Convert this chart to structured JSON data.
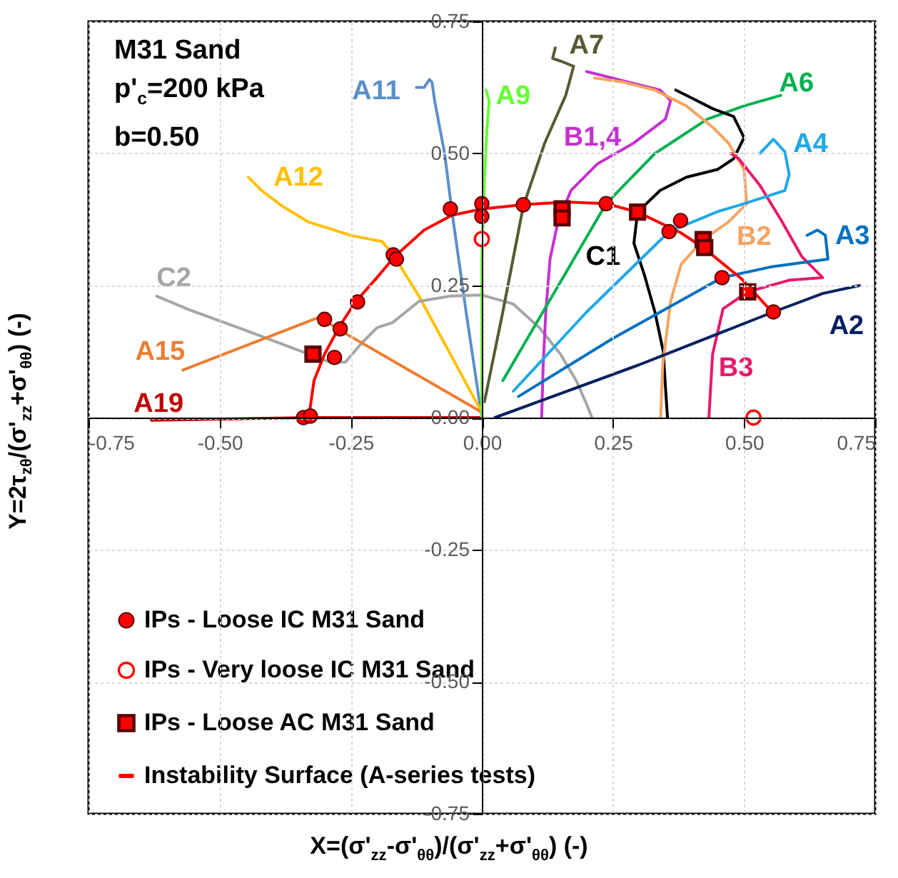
{
  "chart_data": {
    "type": "line",
    "xlabel": "X=(σ'$_{zz}$-σ'$_{θθ}$)/(σ'$_{zz}$+σ'$_{θθ}$) (-)",
    "ylabel": "Y=2τ$_{zθ}$/(σ'$_{zz}$+σ'$_{θθ}$) (-)",
    "xlim": [
      -0.75,
      0.75
    ],
    "ylim": [
      -0.75,
      0.75
    ],
    "xticks": [
      -0.75,
      {
        "value": -0.5,
        "label": "-0.50"
      },
      -0.25,
      {
        "value": 0,
        "label": "0.00"
      },
      0.25,
      {
        "value": 0.5,
        "label": "0.50"
      },
      0.75
    ],
    "yticks": [
      -0.75,
      {
        "value": -0.5,
        "label": "-0.50"
      },
      -0.25,
      {
        "value": 0,
        "label": "0.00"
      },
      0.25,
      {
        "value": 0.5,
        "label": "0.50"
      },
      0.75
    ],
    "grid": true,
    "legend": "bottom left",
    "line_style": "solid",
    "annotations": [
      "M31 Sand",
      "p'$_{c}$=200 kPa",
      "b=0.50"
    ],
    "series": [
      {
        "name": "A11",
        "color": "#5b8fc9",
        "x": [
          0,
          -0.03,
          -0.057,
          -0.071,
          -0.09,
          -0.095,
          -0.1,
          -0.11,
          -0.125
        ],
        "values": [
          0,
          0.2,
          0.39,
          0.5,
          0.6,
          0.635,
          0.64,
          0.625,
          0.625
        ]
      },
      {
        "name": "A12",
        "color": "#ffc000",
        "x": [
          0,
          -0.12,
          -0.17,
          -0.19,
          -0.25,
          -0.33,
          -0.38,
          -0.42,
          -0.445
        ],
        "values": [
          0.01,
          0.23,
          0.31,
          0.333,
          0.345,
          0.37,
          0.4,
          0.43,
          0.455
        ]
      },
      {
        "name": "C2",
        "color": "#a6a6a6",
        "x": [
          -0.62,
          -0.56,
          -0.45,
          -0.33,
          -0.29,
          -0.26,
          -0.23,
          -0.2,
          -0.17,
          -0.12,
          -0.06,
          0,
          0.06,
          0.11,
          0.15,
          0.18,
          0.2,
          0.21
        ],
        "values": [
          0.23,
          0.205,
          0.165,
          0.12,
          0.105,
          0.105,
          0.14,
          0.17,
          0.18,
          0.22,
          0.23,
          0.232,
          0.215,
          0.17,
          0.12,
          0.07,
          0.025,
          0
        ]
      },
      {
        "name": "A15",
        "color": "#ed7d31",
        "x": [
          -0.57,
          -0.31,
          -0.27,
          0
        ],
        "values": [
          0.09,
          0.19,
          0.165,
          0.01
        ]
      },
      {
        "name": "A19",
        "color": "#c00000",
        "x": [
          -0.63,
          -0.33,
          0
        ],
        "values": [
          -0.005,
          0,
          0
        ]
      },
      {
        "name": "A9",
        "color": "#66ff33",
        "x": [
          0,
          0,
          0.005,
          0.01,
          0.014,
          0.008
        ],
        "values": [
          0,
          0.3,
          0.45,
          0.55,
          0.6,
          0.62
        ]
      },
      {
        "name": "A7",
        "color": "#595933",
        "x": [
          0.005,
          0.04,
          0.079,
          0.12,
          0.16,
          0.175,
          0.15,
          0.135,
          0.14
        ],
        "values": [
          0.03,
          0.2,
          0.4,
          0.52,
          0.61,
          0.665,
          0.675,
          0.68,
          0.7
        ]
      },
      {
        "name": "B1,4",
        "color": "#c531d0",
        "x": [
          0.114,
          0.117,
          0.122,
          0.13,
          0.145,
          0.17,
          0.22,
          0.29,
          0.35,
          0.36,
          0.34,
          0.28,
          0.2
        ],
        "values": [
          0,
          0.1,
          0.2,
          0.3,
          0.37,
          0.43,
          0.48,
          0.52,
          0.565,
          0.6,
          0.62,
          0.635,
          0.655
        ]
      },
      {
        "name": "A6",
        "color": "#00b050",
        "x": [
          0.04,
          0.14,
          0.237,
          0.33,
          0.43,
          0.5,
          0.57
        ],
        "values": [
          0.07,
          0.24,
          0.405,
          0.5,
          0.565,
          0.59,
          0.61
        ]
      },
      {
        "name": "C1",
        "color": "#000000",
        "x": [
          0.354,
          0.35,
          0.346,
          0.33,
          0.31,
          0.29,
          0.297,
          0.34,
          0.39,
          0.45,
          0.48,
          0.5,
          0.48,
          0.44,
          0.4,
          0.37
        ],
        "values": [
          0,
          0.06,
          0.125,
          0.2,
          0.27,
          0.33,
          0.389,
          0.43,
          0.455,
          0.47,
          0.49,
          0.53,
          0.57,
          0.585,
          0.605,
          0.62
        ]
      },
      {
        "name": "B2",
        "color": "#f4a460",
        "x": [
          0.341,
          0.345,
          0.36,
          0.38,
          0.422,
          0.47,
          0.505,
          0.5,
          0.47,
          0.44,
          0.39,
          0.33,
          0.27,
          0.215
        ],
        "values": [
          0,
          0.1,
          0.22,
          0.29,
          0.337,
          0.37,
          0.405,
          0.47,
          0.52,
          0.55,
          0.59,
          0.62,
          0.635,
          0.643
        ]
      },
      {
        "name": "B3",
        "color": "#e6196b",
        "x": [
          0.433,
          0.44,
          0.46,
          0.507,
          0.586,
          0.65,
          0.61,
          0.57,
          0.53,
          0.49,
          0.475
        ],
        "values": [
          0,
          0.12,
          0.206,
          0.238,
          0.26,
          0.265,
          0.305,
          0.375,
          0.44,
          0.49,
          0.5
        ]
      },
      {
        "name": "A4",
        "color": "#1fa8e6",
        "x": [
          0.06,
          0.2,
          0.357,
          0.45,
          0.5,
          0.578,
          0.586,
          0.578,
          0.556,
          0.53
        ],
        "values": [
          0.05,
          0.2,
          0.352,
          0.39,
          0.405,
          0.43,
          0.46,
          0.503,
          0.527,
          0.5
        ]
      },
      {
        "name": "A3",
        "color": "#0070c0",
        "x": [
          0.07,
          0.25,
          0.458,
          0.55,
          0.66,
          0.655,
          0.64,
          0.62
        ],
        "values": [
          0.04,
          0.15,
          0.265,
          0.285,
          0.3,
          0.345,
          0.355,
          0.345
        ]
      },
      {
        "name": "A2",
        "color": "#002060",
        "x": [
          0.025,
          0.3,
          0.556,
          0.65,
          0.72
        ],
        "values": [
          0,
          0.1,
          0.2,
          0.235,
          0.25
        ]
      },
      {
        "type": "scatter",
        "name": "IPs - Loose IC M31 Sand",
        "color": "#ff0000",
        "marker": "circle",
        "x": [
          -0.34,
          -0.327,
          -0.3,
          -0.27,
          -0.281,
          -0.237,
          -0.169,
          -0.163,
          -0.06,
          0,
          0,
          0.079,
          0.237,
          0.357,
          0.379,
          0.458,
          0.556
        ],
        "values": [
          0,
          0.003,
          0.186,
          0.168,
          0.114,
          0.219,
          0.308,
          0.3,
          0.395,
          0.405,
          0.381,
          0.403,
          0.405,
          0.352,
          0.373,
          0.265,
          0.2
        ]
      },
      {
        "type": "scatter",
        "name": "IPs - Very loose IC M31 Sand",
        "color": "#ff0000",
        "marker": "circle",
        "x": [
          0,
          0.518
        ],
        "values": [
          0.338,
          0
        ]
      },
      {
        "type": "scatter",
        "name": "IPs - Loose AC M31 Sand",
        "color": "#ff0000",
        "marker": "square",
        "x": [
          -0.322,
          0.153,
          0.153,
          0.297,
          0.422,
          0.425,
          0.507
        ],
        "values": [
          0.12,
          0.395,
          0.378,
          0.389,
          0.337,
          0.322,
          0.238
        ]
      },
      {
        "name": "Instability Surface (A-series tests)",
        "color": "#ff0000",
        "x": [
          -0.33,
          -0.32,
          -0.3,
          -0.27,
          -0.24,
          -0.2,
          -0.166,
          -0.11,
          -0.057,
          0,
          0.079,
          0.16,
          0.237,
          0.297,
          0.379,
          0.422,
          0.496,
          0.556
        ],
        "values": [
          0,
          0.07,
          0.12,
          0.175,
          0.22,
          0.265,
          0.305,
          0.355,
          0.383,
          0.395,
          0.403,
          0.408,
          0.405,
          0.389,
          0.35,
          0.322,
          0.262,
          0.197
        ]
      }
    ]
  }
}
